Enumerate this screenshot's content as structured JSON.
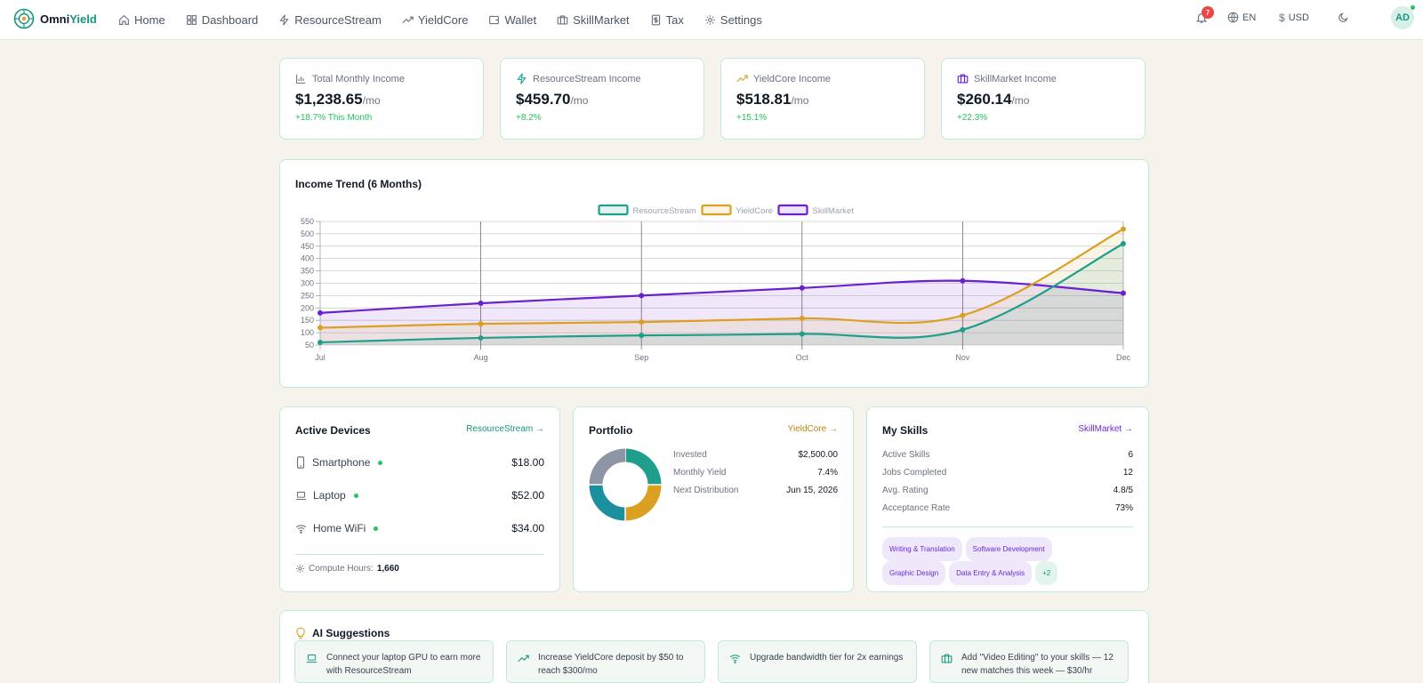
{
  "app": {
    "brand_a": "Omni",
    "brand_b": "Yield"
  },
  "nav": [
    {
      "label": "Home",
      "icon": "home-icon"
    },
    {
      "label": "Dashboard",
      "icon": "grid-icon"
    },
    {
      "label": "ResourceStream",
      "icon": "bolt-icon"
    },
    {
      "label": "YieldCore",
      "icon": "trend-icon"
    },
    {
      "label": "Wallet",
      "icon": "wallet-icon"
    },
    {
      "label": "SkillMarket",
      "icon": "briefcase-icon"
    },
    {
      "label": "Tax",
      "icon": "receipt-icon"
    },
    {
      "label": "Settings",
      "icon": "gear-icon"
    }
  ],
  "toolbar": {
    "notifications": "7",
    "language": "EN",
    "currency": "USD",
    "avatar": "AD"
  },
  "colors": {
    "resourcestream": "#1f9e8b",
    "yieldcore": "#dba021",
    "skillmarket": "#6a1fd1",
    "positive": "#22c55e"
  },
  "stats": [
    {
      "label": "Total Monthly Income",
      "value": "$1,238.65",
      "unit": "/mo",
      "change": "+18.7% This Month",
      "icon": "bar-chart-icon"
    },
    {
      "label": "ResourceStream Income",
      "value": "$459.70",
      "unit": "/mo",
      "change": "+8.2%",
      "icon": "bolt-icon"
    },
    {
      "label": "YieldCore Income",
      "value": "$518.81",
      "unit": "/mo",
      "change": "+15.1%",
      "icon": "trend-icon"
    },
    {
      "label": "SkillMarket Income",
      "value": "$260.14",
      "unit": "/mo",
      "change": "+22.3%",
      "icon": "briefcase-icon"
    }
  ],
  "chart_data": {
    "type": "area",
    "title": "Income Trend (6 Months)",
    "categories": [
      "Jul",
      "Aug",
      "Sep",
      "Oct",
      "Nov",
      "Dec"
    ],
    "ylim": [
      50,
      550
    ],
    "yticks": [
      50,
      100,
      150,
      200,
      250,
      300,
      350,
      400,
      450,
      500,
      550
    ],
    "grid": true,
    "legend_position": "top-center",
    "series": [
      {
        "name": "ResourceStream",
        "color": "#1f9e8b",
        "values": [
          61,
          79,
          89,
          95,
          112,
          460
        ]
      },
      {
        "name": "YieldCore",
        "color": "#dba021",
        "values": [
          120,
          136,
          143,
          158,
          170,
          519
        ]
      },
      {
        "name": "SkillMarket",
        "color": "#6a1fd1",
        "values": [
          180,
          219,
          250,
          281,
          310,
          260
        ]
      }
    ]
  },
  "devices": {
    "title": "Active Devices",
    "link": "ResourceStream →",
    "items": [
      {
        "name": "Smartphone",
        "amount": "$18.00",
        "icon": "phone-icon"
      },
      {
        "name": "Laptop",
        "amount": "$52.00",
        "icon": "laptop-icon"
      },
      {
        "name": "Home WiFi",
        "amount": "$34.00",
        "icon": "wifi-icon"
      }
    ],
    "compute_label": "Compute Hours:",
    "compute_value": "1,660"
  },
  "portfolio": {
    "title": "Portfolio",
    "link": "YieldCore →",
    "rows": [
      {
        "k": "Invested",
        "v": "$2,500.00"
      },
      {
        "k": "Monthly Yield",
        "v": "7.4%"
      },
      {
        "k": "Next Distribution",
        "v": "Jun 15, 2026"
      }
    ],
    "donut": [
      {
        "fraction": 0.25,
        "color": "#1f9e8b"
      },
      {
        "fraction": 0.25,
        "color": "#dba021"
      },
      {
        "fraction": 0.25,
        "color": "#1b8f9e"
      },
      {
        "fraction": 0.25,
        "color": "#8e95a5"
      }
    ]
  },
  "skills": {
    "title": "My Skills",
    "link": "SkillMarket →",
    "rows": [
      {
        "k": "Active Skills",
        "v": "6"
      },
      {
        "k": "Jobs Completed",
        "v": "12"
      },
      {
        "k": "Avg. Rating",
        "v": "4.8/5"
      },
      {
        "k": "Acceptance Rate",
        "v": "73%"
      }
    ],
    "tags": [
      "Writing & Translation",
      "Software Development",
      "Graphic Design",
      "Data Entry & Analysis"
    ],
    "more": "+2"
  },
  "ai": {
    "title": "AI Suggestions",
    "items": [
      {
        "text": "Connect your laptop GPU to earn more with ResourceStream",
        "icon": "laptop-icon"
      },
      {
        "text": "Increase YieldCore deposit by $50 to reach $300/mo",
        "icon": "trend-icon"
      },
      {
        "text": "Upgrade bandwidth tier for 2x earnings",
        "icon": "wifi-icon"
      },
      {
        "text": "Add \"Video Editing\" to your skills — 12 new matches this week — $30/hr",
        "icon": "briefcase-icon"
      }
    ]
  }
}
